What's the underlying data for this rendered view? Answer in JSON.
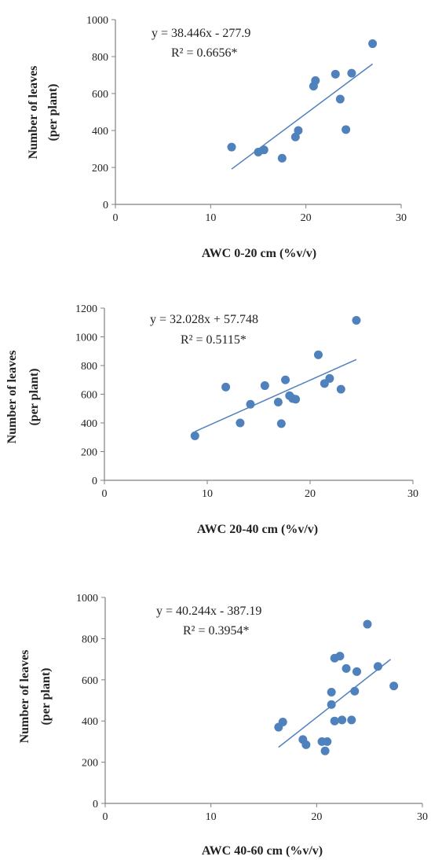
{
  "chart_data": [
    {
      "type": "scatter",
      "xlabel": "AWC 0-20 cm (%v/v)",
      "ylabel": [
        "Number of leaves",
        "(per plant)"
      ],
      "xlim": [
        0,
        30
      ],
      "ylim": [
        0,
        1000
      ],
      "xticks": [
        0,
        10,
        20,
        30
      ],
      "yticks": [
        0,
        200,
        400,
        600,
        800,
        1000
      ],
      "grid": false,
      "equation": "y = 38.446x - 277.9",
      "r2": "R² = 0.6656*",
      "trendline": {
        "slope": 38.446,
        "intercept": -277.9,
        "x_range": [
          12.2,
          27.0
        ]
      },
      "marker_color": "#4f81bd",
      "line_color": "#4f81bd",
      "points": [
        {
          "x": 12.2,
          "y": 310
        },
        {
          "x": 15.0,
          "y": 283
        },
        {
          "x": 15.6,
          "y": 295
        },
        {
          "x": 17.5,
          "y": 250
        },
        {
          "x": 18.9,
          "y": 365
        },
        {
          "x": 19.2,
          "y": 400
        },
        {
          "x": 20.8,
          "y": 640
        },
        {
          "x": 21.0,
          "y": 670
        },
        {
          "x": 23.1,
          "y": 705
        },
        {
          "x": 23.6,
          "y": 570
        },
        {
          "x": 24.2,
          "y": 405
        },
        {
          "x": 24.8,
          "y": 710
        },
        {
          "x": 27.0,
          "y": 870
        }
      ]
    },
    {
      "type": "scatter",
      "xlabel": "AWC 20-40 cm (%v/v)",
      "ylabel": [
        "Number of leaves",
        "(per plant)"
      ],
      "xlim": [
        0,
        30
      ],
      "ylim": [
        0,
        1200
      ],
      "xticks": [
        0,
        10,
        20,
        30
      ],
      "yticks": [
        0,
        200,
        400,
        600,
        800,
        1000,
        1200
      ],
      "grid": false,
      "equation": "y = 32.028x + 57.748",
      "r2": "R² = 0.5115*",
      "trendline": {
        "slope": 32.028,
        "intercept": 57.748,
        "x_range": [
          8.8,
          24.5
        ]
      },
      "marker_color": "#4f81bd",
      "line_color": "#4f81bd",
      "points": [
        {
          "x": 8.8,
          "y": 310
        },
        {
          "x": 11.8,
          "y": 650
        },
        {
          "x": 13.2,
          "y": 400
        },
        {
          "x": 14.2,
          "y": 530
        },
        {
          "x": 15.6,
          "y": 660
        },
        {
          "x": 16.9,
          "y": 545
        },
        {
          "x": 17.2,
          "y": 395
        },
        {
          "x": 17.6,
          "y": 700
        },
        {
          "x": 18.0,
          "y": 590
        },
        {
          "x": 18.3,
          "y": 570
        },
        {
          "x": 18.6,
          "y": 565
        },
        {
          "x": 20.8,
          "y": 875
        },
        {
          "x": 21.4,
          "y": 675
        },
        {
          "x": 21.9,
          "y": 710
        },
        {
          "x": 23.0,
          "y": 635
        },
        {
          "x": 24.5,
          "y": 1115
        }
      ]
    },
    {
      "type": "scatter",
      "xlabel": "AWC 40-60 cm (%v/v)",
      "ylabel": [
        "Number of leaves",
        "(per plant)"
      ],
      "xlim": [
        0,
        30
      ],
      "ylim": [
        0,
        1000
      ],
      "xticks": [
        0,
        10,
        20,
        30
      ],
      "yticks": [
        0,
        200,
        400,
        600,
        800,
        1000
      ],
      "grid": false,
      "equation": "y = 40.244x - 387.19",
      "r2": "R² = 0.3954*",
      "trendline": {
        "slope": 40.244,
        "intercept": -387.19,
        "x_range": [
          16.4,
          27.0
        ]
      },
      "marker_color": "#4f81bd",
      "line_color": "#4f81bd",
      "points": [
        {
          "x": 16.4,
          "y": 370
        },
        {
          "x": 16.8,
          "y": 395
        },
        {
          "x": 18.7,
          "y": 310
        },
        {
          "x": 19.0,
          "y": 285
        },
        {
          "x": 20.5,
          "y": 300
        },
        {
          "x": 20.8,
          "y": 255
        },
        {
          "x": 21.0,
          "y": 300
        },
        {
          "x": 21.4,
          "y": 540
        },
        {
          "x": 21.4,
          "y": 480
        },
        {
          "x": 21.7,
          "y": 400
        },
        {
          "x": 21.7,
          "y": 705
        },
        {
          "x": 22.2,
          "y": 715
        },
        {
          "x": 22.4,
          "y": 405
        },
        {
          "x": 22.8,
          "y": 655
        },
        {
          "x": 23.3,
          "y": 405
        },
        {
          "x": 23.6,
          "y": 545
        },
        {
          "x": 23.8,
          "y": 640
        },
        {
          "x": 24.8,
          "y": 870
        },
        {
          "x": 25.8,
          "y": 665
        },
        {
          "x": 27.3,
          "y": 570
        }
      ]
    }
  ]
}
